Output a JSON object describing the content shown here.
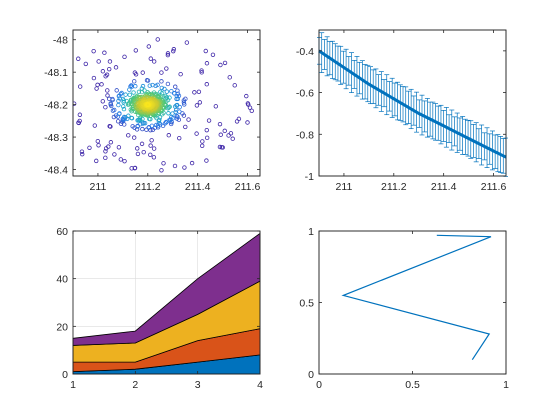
{
  "colors": {
    "axis": "#262626",
    "grid": "#dcdcdc",
    "line": "#0072BD",
    "area": [
      "#0072BD",
      "#D95319",
      "#EDB120",
      "#7E2F8E"
    ]
  },
  "chart_data": [
    {
      "type": "scatter",
      "title": "",
      "xlabel": "",
      "ylabel": "",
      "xlim": [
        210.9,
        211.65
      ],
      "ylim": [
        -48.42,
        -47.97
      ],
      "xticks": [
        211,
        211.2,
        211.4,
        211.6
      ],
      "xtick_labels": [
        "211",
        "211.2",
        "211.4",
        "211.6"
      ],
      "yticks": [
        -48,
        -48.1,
        -48.2,
        -48.3,
        -48.4
      ],
      "ytick_labels": [
        "-48",
        "-48.1",
        "-48.2",
        "-48.3",
        "-48.4"
      ],
      "marker": "open-circle",
      "colormap": "parula (density: dark blue at edges, yellow at center)",
      "center": [
        211.2,
        -48.2
      ],
      "grid": false
    },
    {
      "type": "line",
      "title": "",
      "xlabel": "",
      "ylabel": "",
      "xlim": [
        210.9,
        211.65
      ],
      "ylim": [
        -1,
        -0.3
      ],
      "xticks": [
        211,
        211.2,
        211.4,
        211.6
      ],
      "xtick_labels": [
        "211",
        "211.2",
        "211.4",
        "211.6"
      ],
      "yticks": [
        -0.4,
        -0.6,
        -0.8,
        -1
      ],
      "ytick_labels": [
        "-0.4",
        "-0.6",
        "-0.8",
        "-1"
      ],
      "errorbars": true,
      "series": [
        {
          "x": [
            210.9,
            211.0,
            211.1,
            211.2,
            211.3,
            211.4,
            211.5,
            211.6,
            211.65
          ],
          "y": [
            -0.4,
            -0.48,
            -0.56,
            -0.63,
            -0.7,
            -0.76,
            -0.82,
            -0.88,
            -0.91
          ],
          "err": 0.08
        }
      ],
      "grid": false
    },
    {
      "type": "area",
      "title": "",
      "xlabel": "",
      "ylabel": "",
      "x": [
        1,
        2,
        3,
        4
      ],
      "xlim": [
        1,
        4
      ],
      "ylim": [
        0,
        60
      ],
      "xticks": [
        1,
        2,
        3,
        4
      ],
      "xtick_labels": [
        "1",
        "2",
        "3",
        "4"
      ],
      "yticks": [
        0,
        20,
        40,
        60
      ],
      "ytick_labels": [
        "0",
        "20",
        "40",
        "60"
      ],
      "stacked": true,
      "series": [
        {
          "values": [
            1,
            2,
            5,
            8
          ]
        },
        {
          "values": [
            4,
            3,
            9,
            11
          ]
        },
        {
          "values": [
            7,
            8,
            11,
            20
          ]
        },
        {
          "values": [
            3,
            5,
            15,
            20
          ]
        }
      ],
      "grid": true
    },
    {
      "type": "line",
      "title": "",
      "xlabel": "",
      "ylabel": "",
      "xlim": [
        0,
        1
      ],
      "ylim": [
        0,
        1
      ],
      "xticks": [
        0,
        0.5,
        1
      ],
      "xtick_labels": [
        "0",
        "0.5",
        "1"
      ],
      "yticks": [
        0,
        0.5,
        1
      ],
      "ytick_labels": [
        "0",
        "0.5",
        "1"
      ],
      "series": [
        {
          "x": [
            0.82,
            0.91,
            0.13,
            0.92,
            0.63
          ],
          "y": [
            0.1,
            0.28,
            0.55,
            0.96,
            0.97
          ]
        }
      ],
      "grid": false
    }
  ]
}
